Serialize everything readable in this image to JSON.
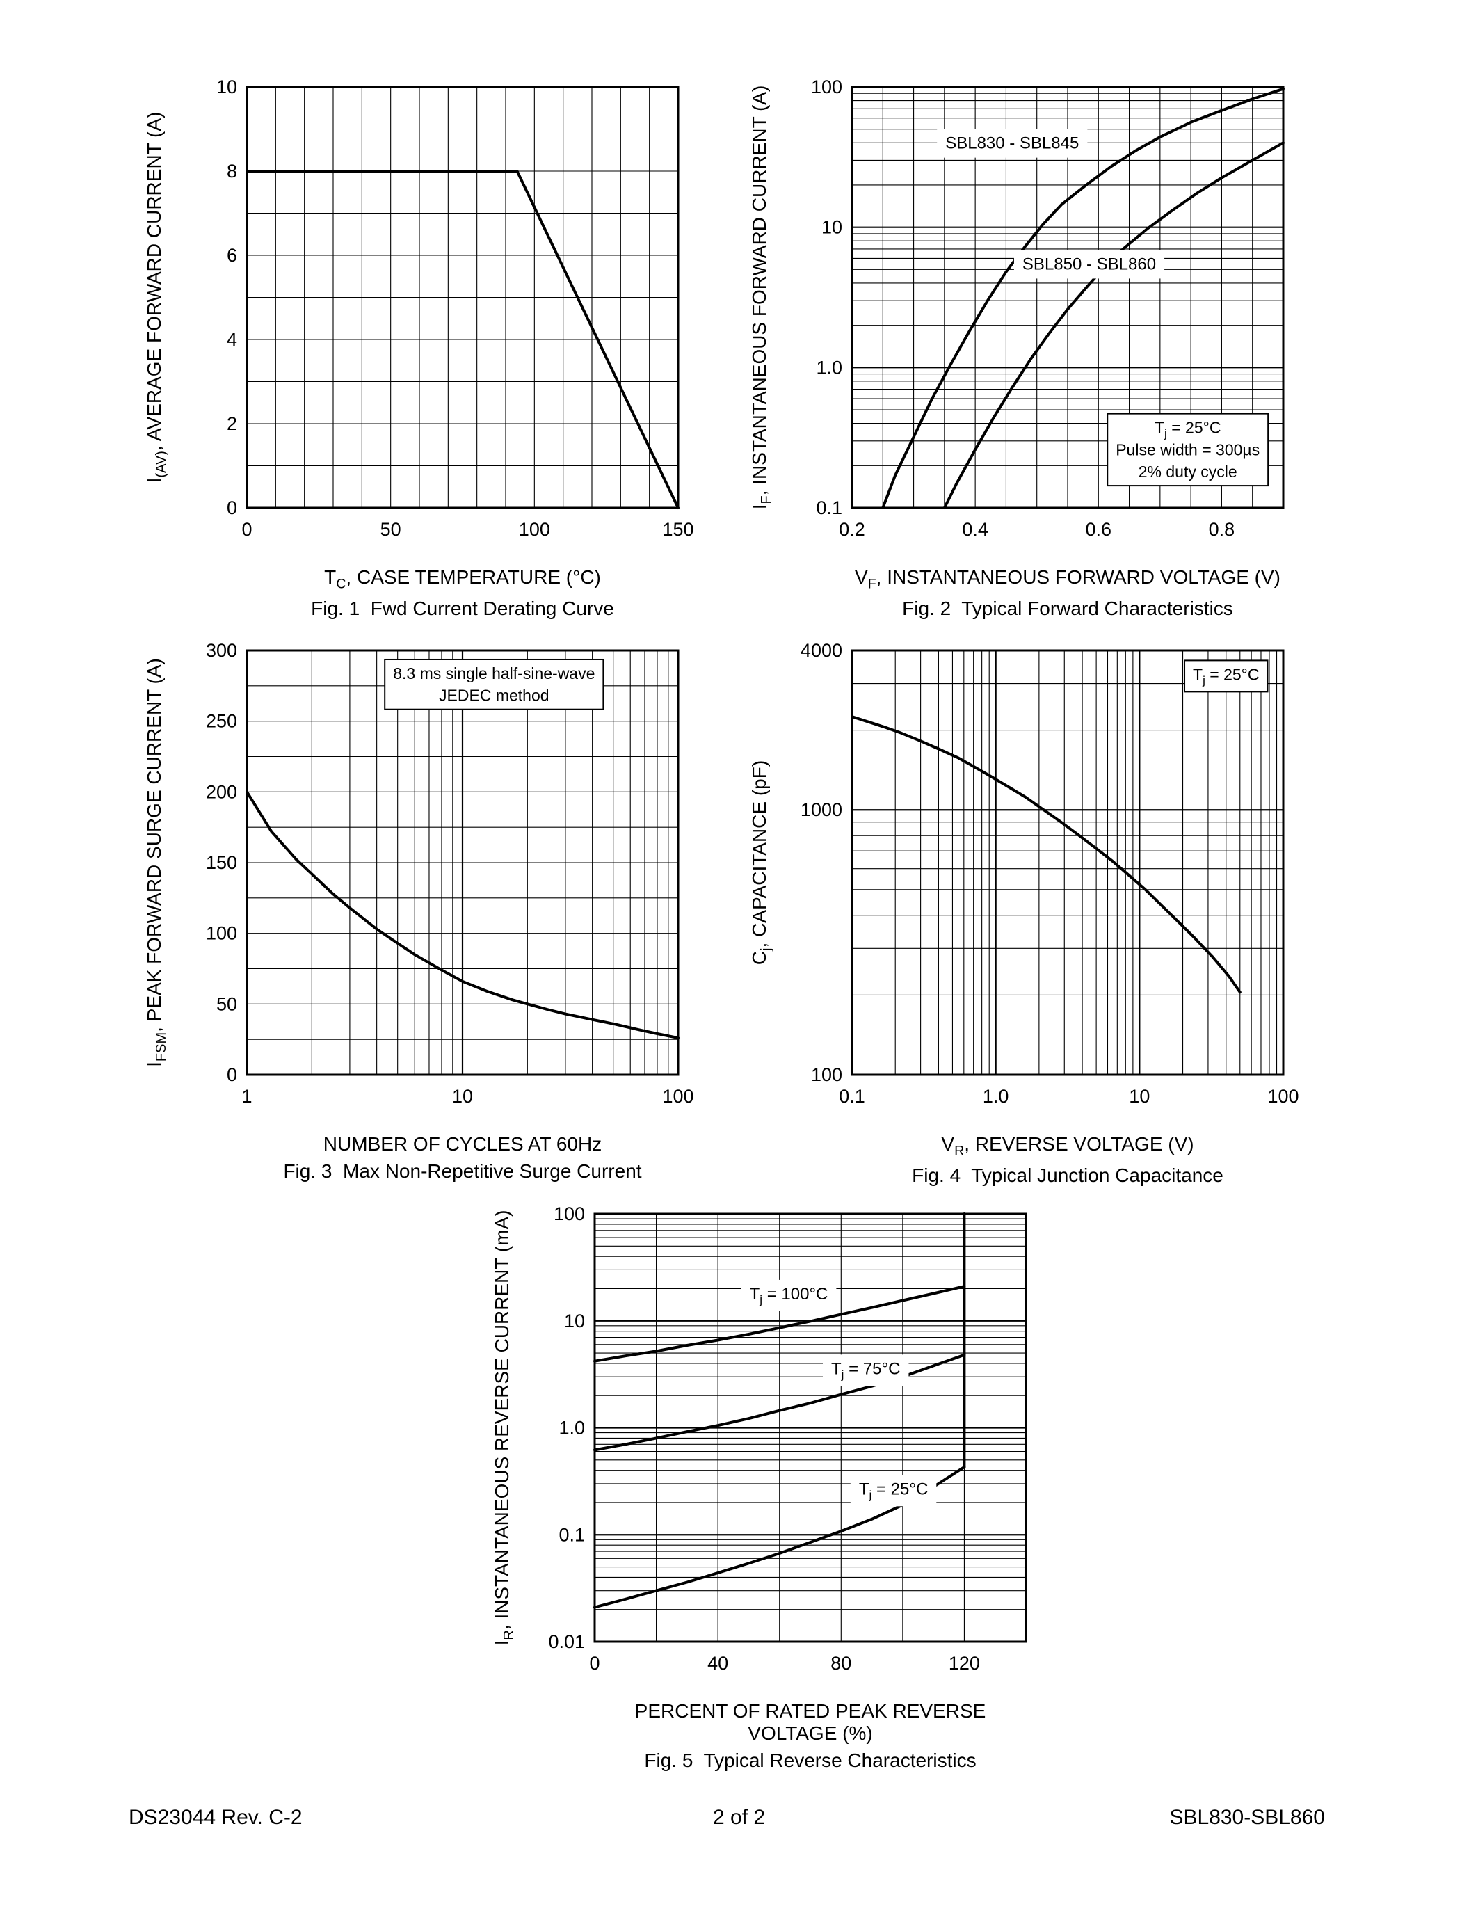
{
  "page": {
    "footer_left": "DS23044 Rev. C-2",
    "footer_center": "2 of 2",
    "footer_right": "SBL830-SBL860"
  },
  "chart_data": [
    {
      "id": "fig1",
      "type": "line",
      "title": "Fig. 1  Fwd Current Derating Curve",
      "xlabel": "T~C~, CASE TEMPERATURE (°C)",
      "ylabel": "I~(AV)~, AVERAGE FORWARD CURRENT (A)",
      "x_axis": {
        "scale": "linear",
        "min": 0,
        "max": 150,
        "grid_step": 10,
        "ticks": [
          [
            0,
            "0"
          ],
          [
            50,
            "50"
          ],
          [
            100,
            "100"
          ],
          [
            150,
            "150"
          ]
        ]
      },
      "y_axis": {
        "scale": "linear",
        "min": 0,
        "max": 10,
        "grid_step": 1,
        "ticks": [
          [
            0,
            "0"
          ],
          [
            2,
            "2"
          ],
          [
            4,
            "4"
          ],
          [
            6,
            "6"
          ],
          [
            8,
            "8"
          ],
          [
            10,
            "10"
          ]
        ]
      },
      "series": [
        {
          "name": "average forward current derating",
          "points": [
            [
              0,
              8
            ],
            [
              94,
              8
            ],
            [
              150,
              0
            ]
          ]
        }
      ],
      "annotations": []
    },
    {
      "id": "fig2",
      "type": "line",
      "title": "Fig. 2  Typical Forward Characteristics",
      "xlabel": "V~F~, INSTANTANEOUS FORWARD VOLTAGE (V)",
      "ylabel": "I~F~, INSTANTANEOUS FORWARD CURRENT (A)",
      "x_axis": {
        "scale": "linear",
        "min": 0.2,
        "max": 0.9,
        "grid_step": 0.05,
        "ticks": [
          [
            0.2,
            "0.2"
          ],
          [
            0.4,
            "0.4"
          ],
          [
            0.6,
            "0.6"
          ],
          [
            0.8,
            "0.8"
          ]
        ]
      },
      "y_axis": {
        "scale": "log",
        "min": 0.1,
        "max": 100,
        "ticks": [
          [
            0.1,
            "0.1"
          ],
          [
            1,
            "1.0"
          ],
          [
            10,
            "10"
          ],
          [
            100,
            "100"
          ]
        ]
      },
      "series": [
        {
          "name": "SBL830 - SBL845",
          "points": [
            [
              0.25,
              0.1
            ],
            [
              0.27,
              0.17
            ],
            [
              0.3,
              0.32
            ],
            [
              0.33,
              0.6
            ],
            [
              0.36,
              1.05
            ],
            [
              0.39,
              1.8
            ],
            [
              0.42,
              3.0
            ],
            [
              0.45,
              4.8
            ],
            [
              0.48,
              7.2
            ],
            [
              0.51,
              10.5
            ],
            [
              0.54,
              14.5
            ],
            [
              0.58,
              20
            ],
            [
              0.62,
              27
            ],
            [
              0.66,
              35
            ],
            [
              0.7,
              44
            ],
            [
              0.75,
              56
            ],
            [
              0.8,
              68
            ],
            [
              0.85,
              82
            ],
            [
              0.9,
              97
            ]
          ]
        },
        {
          "name": "SBL850 - SBL860",
          "points": [
            [
              0.35,
              0.1
            ],
            [
              0.37,
              0.15
            ],
            [
              0.4,
              0.26
            ],
            [
              0.43,
              0.44
            ],
            [
              0.46,
              0.72
            ],
            [
              0.49,
              1.15
            ],
            [
              0.52,
              1.75
            ],
            [
              0.55,
              2.6
            ],
            [
              0.58,
              3.7
            ],
            [
              0.61,
              5.2
            ],
            [
              0.64,
              7.0
            ],
            [
              0.68,
              9.8
            ],
            [
              0.72,
              13.2
            ],
            [
              0.76,
              17.5
            ],
            [
              0.8,
              22.5
            ],
            [
              0.85,
              30
            ],
            [
              0.9,
              40
            ]
          ]
        }
      ],
      "annotations": [
        {
          "x": 0.46,
          "y": 40,
          "lines": [
            "SBL830 - SBL845"
          ],
          "box": false
        },
        {
          "x": 0.585,
          "y": 5.5,
          "lines": [
            "SBL850 - SBL860"
          ],
          "box": false
        },
        {
          "x": 0.745,
          "y": 0.26,
          "lines": [
            "T~j~ = 25°C",
            "Pulse width = 300µs",
            "2% duty cycle"
          ],
          "box": true
        }
      ]
    },
    {
      "id": "fig3",
      "type": "line",
      "title": "Fig. 3  Max Non-Repetitive Surge Current",
      "xlabel": "NUMBER OF CYCLES AT 60Hz",
      "ylabel": "I~FSM~, PEAK FORWARD SURGE CURRENT (A)",
      "x_axis": {
        "scale": "log",
        "min": 1,
        "max": 100,
        "ticks": [
          [
            1,
            "1"
          ],
          [
            10,
            "10"
          ],
          [
            100,
            "100"
          ]
        ]
      },
      "y_axis": {
        "scale": "linear",
        "min": 0,
        "max": 300,
        "grid_step": 25,
        "ticks": [
          [
            0,
            "0"
          ],
          [
            50,
            "50"
          ],
          [
            100,
            "100"
          ],
          [
            150,
            "150"
          ],
          [
            200,
            "200"
          ],
          [
            250,
            "250"
          ],
          [
            300,
            "300"
          ]
        ]
      },
      "series": [
        {
          "name": "peak forward surge current",
          "points": [
            [
              1,
              200
            ],
            [
              1.3,
              172
            ],
            [
              1.7,
              152
            ],
            [
              2,
              142
            ],
            [
              2.5,
              128
            ],
            [
              3,
              118
            ],
            [
              4,
              103
            ],
            [
              5,
              93
            ],
            [
              6,
              85
            ],
            [
              8,
              74
            ],
            [
              10,
              66
            ],
            [
              13,
              59
            ],
            [
              17,
              53
            ],
            [
              20,
              50
            ],
            [
              25,
              46
            ],
            [
              30,
              43
            ],
            [
              40,
              39
            ],
            [
              50,
              36
            ],
            [
              65,
              32
            ],
            [
              80,
              29
            ],
            [
              100,
              26
            ]
          ]
        }
      ],
      "annotations": [
        {
          "x": 14,
          "y": 276,
          "lines": [
            "8.3 ms single half-sine-wave",
            "JEDEC method"
          ],
          "box": true
        }
      ]
    },
    {
      "id": "fig4",
      "type": "line",
      "title": "Fig. 4  Typical Junction Capacitance",
      "xlabel": "V~R~, REVERSE VOLTAGE (V)",
      "ylabel": "C~j~, CAPACITANCE (pF)",
      "x_axis": {
        "scale": "log",
        "min": 0.1,
        "max": 100,
        "ticks": [
          [
            0.1,
            "0.1"
          ],
          [
            1,
            "1.0"
          ],
          [
            10,
            "10"
          ],
          [
            100,
            "100"
          ]
        ]
      },
      "y_axis": {
        "scale": "log",
        "min": 100,
        "max": 4000,
        "ticks": [
          [
            100,
            "100"
          ],
          [
            1000,
            "1000"
          ],
          [
            4000,
            "4000"
          ]
        ]
      },
      "series": [
        {
          "name": "junction capacitance",
          "points": [
            [
              0.1,
              2250
            ],
            [
              0.13,
              2150
            ],
            [
              0.17,
              2050
            ],
            [
              0.22,
              1950
            ],
            [
              0.3,
              1820
            ],
            [
              0.4,
              1700
            ],
            [
              0.55,
              1570
            ],
            [
              0.7,
              1460
            ],
            [
              0.9,
              1350
            ],
            [
              1.2,
              1230
            ],
            [
              1.6,
              1120
            ],
            [
              2.1,
              1010
            ],
            [
              2.8,
              905
            ],
            [
              3.7,
              810
            ],
            [
              5,
              715
            ],
            [
              6.5,
              640
            ],
            [
              8.5,
              565
            ],
            [
              11,
              500
            ],
            [
              14,
              440
            ],
            [
              18,
              385
            ],
            [
              24,
              330
            ],
            [
              32,
              280
            ],
            [
              42,
              235
            ],
            [
              50,
              205
            ]
          ]
        }
      ],
      "annotations": [
        {
          "x": 40,
          "y": 3250,
          "lines": [
            "T~j~ = 25°C"
          ],
          "box": true
        }
      ]
    },
    {
      "id": "fig5",
      "type": "line",
      "title": "Fig. 5  Typical Reverse Characteristics",
      "xlabel": "PERCENT OF RATED PEAK REVERSE VOLTAGE (%)",
      "ylabel": "I~R~, INSTANTANEOUS REVERSE CURRENT (mA)",
      "x_axis": {
        "scale": "linear",
        "min": 0,
        "max": 140,
        "grid_step": 20,
        "ticks": [
          [
            0,
            "0"
          ],
          [
            40,
            "40"
          ],
          [
            80,
            "80"
          ],
          [
            120,
            "120"
          ]
        ]
      },
      "y_axis": {
        "scale": "log",
        "min": 0.01,
        "max": 100,
        "ticks": [
          [
            0.01,
            "0.01"
          ],
          [
            0.1,
            "0.1"
          ],
          [
            1,
            "1.0"
          ],
          [
            10,
            "10"
          ],
          [
            100,
            "100"
          ]
        ]
      },
      "series": [
        {
          "name": "Tj = 100°C",
          "points": [
            [
              0,
              4.2
            ],
            [
              10,
              4.7
            ],
            [
              20,
              5.2
            ],
            [
              30,
              5.9
            ],
            [
              40,
              6.6
            ],
            [
              50,
              7.5
            ],
            [
              60,
              8.6
            ],
            [
              70,
              9.9
            ],
            [
              80,
              11.5
            ],
            [
              90,
              13.3
            ],
            [
              100,
              15.5
            ],
            [
              110,
              18
            ],
            [
              120,
              21
            ]
          ]
        },
        {
          "name": "Tj = 75°C",
          "points": [
            [
              0,
              0.62
            ],
            [
              10,
              0.7
            ],
            [
              20,
              0.8
            ],
            [
              30,
              0.92
            ],
            [
              40,
              1.05
            ],
            [
              50,
              1.22
            ],
            [
              60,
              1.45
            ],
            [
              70,
              1.7
            ],
            [
              80,
              2.05
            ],
            [
              90,
              2.45
            ],
            [
              100,
              3.0
            ],
            [
              110,
              3.8
            ],
            [
              120,
              4.8
            ]
          ]
        },
        {
          "name": "Tj = 25°C",
          "points": [
            [
              0,
              0.021
            ],
            [
              10,
              0.025
            ],
            [
              20,
              0.03
            ],
            [
              30,
              0.036
            ],
            [
              40,
              0.044
            ],
            [
              50,
              0.054
            ],
            [
              60,
              0.067
            ],
            [
              70,
              0.085
            ],
            [
              80,
              0.108
            ],
            [
              90,
              0.14
            ],
            [
              100,
              0.19
            ],
            [
              110,
              0.28
            ],
            [
              120,
              0.43
            ]
          ]
        },
        {
          "name": "breakdown at 120%",
          "points": [
            [
              120,
              0.43
            ],
            [
              120,
              100
            ]
          ]
        }
      ],
      "annotations": [
        {
          "x": 63,
          "y": 18,
          "lines": [
            "T~j~ = 100°C"
          ],
          "box": false
        },
        {
          "x": 88,
          "y": 3.6,
          "lines": [
            "T~j~ = 75°C"
          ],
          "box": false
        },
        {
          "x": 97,
          "y": 0.27,
          "lines": [
            "T~j~ = 25°C"
          ],
          "box": false
        }
      ]
    }
  ]
}
